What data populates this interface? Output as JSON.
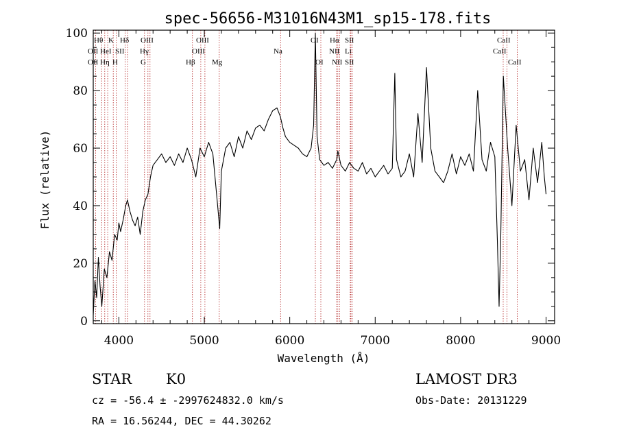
{
  "chart_data": {
    "type": "line",
    "title": "spec-56656-M31016N43M1_sp15-178.fits",
    "xlabel": "Wavelength (Å)",
    "ylabel": "Flux (relative)",
    "xlim": [
      3700,
      9100
    ],
    "ylim": [
      -1,
      101
    ],
    "xticks": [
      4000,
      5000,
      6000,
      7000,
      8000,
      9000
    ],
    "yticks": [
      0,
      20,
      40,
      60,
      80,
      100
    ],
    "grid": false,
    "legend": "none",
    "line_color": "#000000",
    "marker_color": "#b22222",
    "series": [
      {
        "x": [
          3700,
          3720,
          3740,
          3760,
          3780,
          3800,
          3830,
          3860,
          3890,
          3920,
          3950,
          3980,
          4000,
          4020,
          4050,
          4080,
          4100,
          4130,
          4160,
          4190,
          4220,
          4250,
          4280,
          4310,
          4340,
          4370,
          4400,
          4450,
          4500,
          4550,
          4600,
          4650,
          4700,
          4750,
          4800,
          4850,
          4900,
          4950,
          5000,
          5050,
          5100,
          5150,
          5180,
          5200,
          5250,
          5300,
          5350,
          5400,
          5450,
          5500,
          5550,
          5600,
          5650,
          5700,
          5750,
          5800,
          5850,
          5890,
          5920,
          5950,
          6000,
          6050,
          6100,
          6150,
          6200,
          6250,
          6280,
          6300,
          6320,
          6350,
          6400,
          6450,
          6500,
          6550,
          6563,
          6600,
          6650,
          6700,
          6750,
          6800,
          6850,
          6900,
          6950,
          7000,
          7050,
          7100,
          7150,
          7200,
          7230,
          7250,
          7300,
          7350,
          7400,
          7450,
          7500,
          7550,
          7600,
          7650,
          7700,
          7750,
          7800,
          7850,
          7900,
          7950,
          8000,
          8050,
          8100,
          8150,
          8200,
          8250,
          8300,
          8350,
          8400,
          8430,
          8450,
          8470,
          8500,
          8550,
          8600,
          8650,
          8700,
          8750,
          8800,
          8850,
          8900,
          8950,
          8980,
          9000
        ],
        "y": [
          2,
          14,
          8,
          22,
          12,
          5,
          18,
          15,
          24,
          21,
          30,
          28,
          34,
          31,
          35,
          40,
          42,
          38,
          35,
          33,
          36,
          30,
          38,
          42,
          44,
          50,
          54,
          56,
          58,
          55,
          57,
          54,
          58,
          55,
          60,
          56,
          50,
          60,
          57,
          62,
          58,
          42,
          32,
          52,
          60,
          62,
          57,
          64,
          60,
          66,
          63,
          67,
          68,
          66,
          70,
          73,
          74,
          71,
          67,
          64,
          62,
          61,
          60,
          58,
          57,
          60,
          68,
          100,
          64,
          56,
          54,
          55,
          53,
          56,
          59,
          54,
          52,
          55,
          53,
          52,
          55,
          51,
          53,
          50,
          52,
          54,
          51,
          53,
          86,
          56,
          50,
          52,
          58,
          50,
          72,
          55,
          88,
          60,
          52,
          50,
          48,
          52,
          58,
          51,
          57,
          54,
          58,
          52,
          80,
          56,
          52,
          62,
          57,
          28,
          5,
          30,
          85,
          60,
          40,
          68,
          52,
          56,
          42,
          60,
          48,
          62,
          50,
          44
        ]
      }
    ],
    "lines": [
      {
        "x": 3727,
        "labels": [
          "OII"
        ]
      },
      {
        "x": 3798,
        "labels": [
          "Hθ"
        ]
      },
      {
        "x": 3835,
        "labels": [
          "Hη"
        ]
      },
      {
        "x": 3869,
        "labels": [
          "HeI"
        ]
      },
      {
        "x": 3934,
        "labels": [
          "K"
        ]
      },
      {
        "x": 3969,
        "labels": [
          "H"
        ]
      },
      {
        "x": 4072,
        "labels": [
          "SII"
        ]
      },
      {
        "x": 4102,
        "labels": [
          "Hδ"
        ]
      },
      {
        "x": 4300,
        "labels": [
          "G"
        ]
      },
      {
        "x": 4340,
        "labels": [
          "Hγ"
        ]
      },
      {
        "x": 4364,
        "labels": [
          "OIII"
        ]
      },
      {
        "x": 4861,
        "labels": [
          "Hβ"
        ]
      },
      {
        "x": 4959,
        "labels": [
          "OIII"
        ]
      },
      {
        "x": 5007,
        "labels": [
          "OIII"
        ]
      },
      {
        "x": 5175,
        "labels": [
          "Mg"
        ]
      },
      {
        "x": 5893,
        "labels": [
          "Na"
        ]
      },
      {
        "x": 6300,
        "labels": [
          "OI"
        ]
      },
      {
        "x": 6364,
        "labels": [
          "OI"
        ]
      },
      {
        "x": 6548,
        "labels": [
          "NII"
        ]
      },
      {
        "x": 6563,
        "labels": [
          "Hα"
        ]
      },
      {
        "x": 6583,
        "labels": [
          "NII"
        ]
      },
      {
        "x": 6708,
        "labels": [
          "Li"
        ]
      },
      {
        "x": 6716,
        "labels": [
          "SII"
        ]
      },
      {
        "x": 6731,
        "labels": [
          "SII"
        ]
      },
      {
        "x": 8498,
        "labels": [
          "CaII"
        ]
      },
      {
        "x": 8542,
        "labels": [
          "CaII"
        ]
      },
      {
        "x": 8662,
        "labels": [
          "CaII"
        ]
      }
    ]
  },
  "header_labels": {
    "oii_1": "OII",
    "h_theta": "Hθ",
    "oii_2": "OII",
    "h_eta": "Hη",
    "hei": "HeI",
    "k": "K",
    "h": "H",
    "sii_blue": "SII",
    "h_delta": "Hδ",
    "g": "G",
    "h_gamma": "Hγ",
    "oiii_4364": "OIII",
    "h_beta": "Hβ",
    "oiii_4959": "OIII",
    "oiii_5007": "OIII",
    "mg": "Mg",
    "na": "Na",
    "oi_1": "OI",
    "oi_2": "OI",
    "h_alpha": "Hα",
    "nii_1": "NII",
    "nii_2": "NII",
    "sii_1": "SII",
    "li": "Li",
    "sii_2": "SII",
    "caii_1": "CaII",
    "caii_2": "CaII",
    "caii_3": "CaII"
  },
  "info": {
    "object_class": "STAR",
    "subclass": "K0",
    "survey": "LAMOST DR3",
    "redshift": "cz = -56.4 ± -2997624832.0 km/s",
    "obs_date": "Obs-Date: 20131229",
    "coords": "RA =  16.56244, DEC =  44.30262"
  }
}
